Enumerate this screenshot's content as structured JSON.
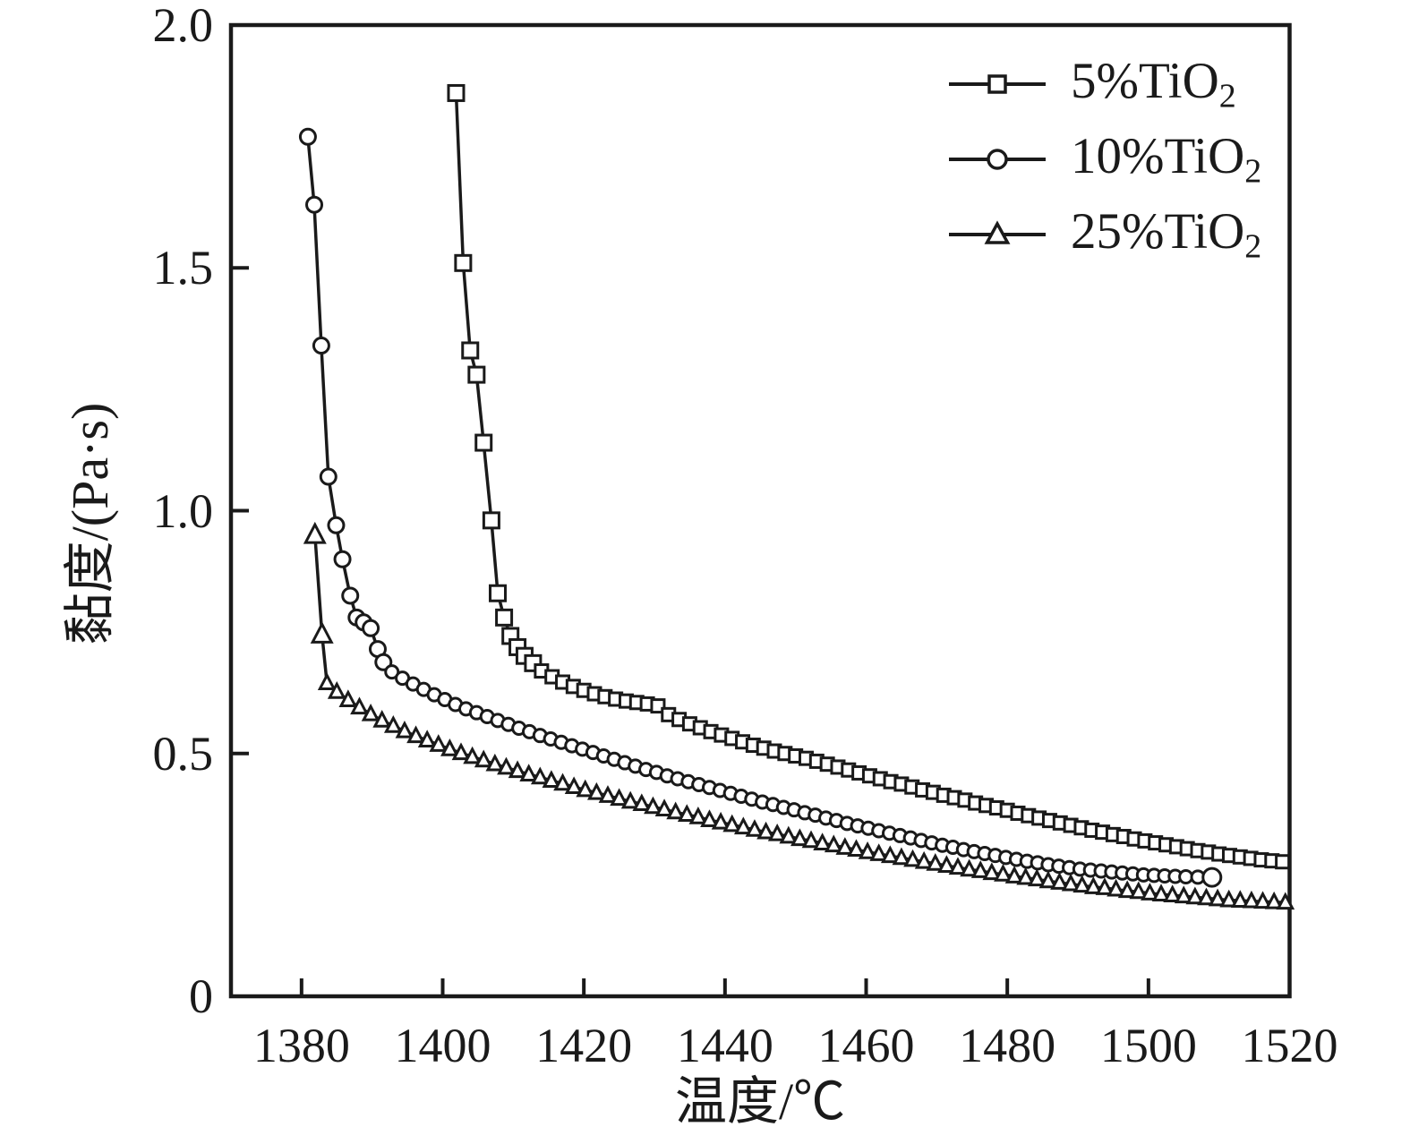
{
  "chart_data": {
    "type": "line",
    "title": "",
    "xlabel": "温度/℃",
    "ylabel": "黏度/(Pa·s)",
    "xlim": [
      1370,
      1520
    ],
    "ylim": [
      0,
      2.0
    ],
    "grid": false,
    "legend_position": "top-right-inside",
    "line_color": "#1a1a1a",
    "x_ticks": [
      1380,
      1400,
      1420,
      1440,
      1460,
      1480,
      1500,
      1520
    ],
    "x_tick_labels": [
      "1380",
      "1400",
      "1420",
      "1440",
      "1460",
      "1480",
      "1500",
      "1520"
    ],
    "y_ticks": [
      0,
      0.5,
      1.0,
      1.5,
      2.0
    ],
    "y_tick_labels": [
      "0",
      "0.5",
      "1.0",
      "1.5",
      "2.0"
    ],
    "series": [
      {
        "name": "5%TiO2",
        "label_base": "5%TiO",
        "label_sub": "2",
        "marker": "square",
        "marker_size": 14,
        "head_count": 12,
        "head_size": 17,
        "points": [
          [
            1401.9,
            1.86
          ],
          [
            1402.9,
            1.51
          ],
          [
            1403.9,
            1.33
          ],
          [
            1404.8,
            1.28
          ],
          [
            1405.8,
            1.14
          ],
          [
            1406.9,
            0.98
          ],
          [
            1407.8,
            0.83
          ],
          [
            1408.7,
            0.78
          ],
          [
            1409.6,
            0.742
          ],
          [
            1410.6,
            0.719
          ],
          [
            1411.6,
            0.701
          ],
          [
            1412.8,
            0.686
          ],
          [
            1414,
            0.67
          ],
          [
            1415.5,
            0.658
          ],
          [
            1417,
            0.647
          ],
          [
            1418.5,
            0.638
          ],
          [
            1420,
            0.63
          ],
          [
            1421.5,
            0.623
          ],
          [
            1423,
            0.617
          ],
          [
            1424.5,
            0.612
          ],
          [
            1426,
            0.608
          ],
          [
            1427.5,
            0.605
          ],
          [
            1429,
            0.602
          ],
          [
            1430.5,
            0.598
          ],
          [
            1432,
            0.58
          ],
          [
            1433.5,
            0.57
          ],
          [
            1435,
            0.561
          ],
          [
            1436.5,
            0.553
          ],
          [
            1438,
            0.545
          ],
          [
            1439.5,
            0.538
          ],
          [
            1441,
            0.531
          ],
          [
            1442.5,
            0.524
          ],
          [
            1444,
            0.517
          ],
          [
            1445.5,
            0.511
          ],
          [
            1447,
            0.505
          ],
          [
            1448.5,
            0.5
          ],
          [
            1450,
            0.495
          ],
          [
            1451.5,
            0.49
          ],
          [
            1453,
            0.484
          ],
          [
            1454.5,
            0.478
          ],
          [
            1456,
            0.472
          ],
          [
            1457.5,
            0.466
          ],
          [
            1459,
            0.46
          ],
          [
            1460.5,
            0.454
          ],
          [
            1462,
            0.448
          ],
          [
            1463.5,
            0.442
          ],
          [
            1465,
            0.437
          ],
          [
            1466.5,
            0.431
          ],
          [
            1468,
            0.425
          ],
          [
            1469.5,
            0.42
          ],
          [
            1471,
            0.414
          ],
          [
            1472.5,
            0.409
          ],
          [
            1474,
            0.404
          ],
          [
            1475.5,
            0.398
          ],
          [
            1477,
            0.393
          ],
          [
            1478.5,
            0.388
          ],
          [
            1480,
            0.383
          ],
          [
            1481.5,
            0.377
          ],
          [
            1483,
            0.372
          ],
          [
            1484.5,
            0.367
          ],
          [
            1486,
            0.362
          ],
          [
            1487.5,
            0.357
          ],
          [
            1489,
            0.352
          ],
          [
            1490.5,
            0.347
          ],
          [
            1492,
            0.342
          ],
          [
            1493.5,
            0.338
          ],
          [
            1495,
            0.333
          ],
          [
            1496.5,
            0.329
          ],
          [
            1498,
            0.324
          ],
          [
            1499.5,
            0.32
          ],
          [
            1501,
            0.316
          ],
          [
            1502.5,
            0.312
          ],
          [
            1504,
            0.308
          ],
          [
            1505.5,
            0.304
          ],
          [
            1507,
            0.3
          ],
          [
            1508.5,
            0.297
          ],
          [
            1510,
            0.293
          ],
          [
            1511.5,
            0.29
          ],
          [
            1513,
            0.287
          ],
          [
            1514.5,
            0.284
          ],
          [
            1516,
            0.281
          ],
          [
            1517.5,
            0.279
          ],
          [
            1519,
            0.277
          ]
        ]
      },
      {
        "name": "10%TiO2",
        "label_base": "10%TiO",
        "label_sub": "2",
        "marker": "circle",
        "marker_size": 14,
        "head_count": 12,
        "head_size": 17,
        "last_size": 20,
        "points": [
          [
            1380.9,
            1.77
          ],
          [
            1381.8,
            1.63
          ],
          [
            1382.8,
            1.34
          ],
          [
            1383.8,
            1.07
          ],
          [
            1384.9,
            0.97
          ],
          [
            1385.8,
            0.9
          ],
          [
            1386.9,
            0.825
          ],
          [
            1387.8,
            0.78
          ],
          [
            1388.8,
            0.77
          ],
          [
            1389.8,
            0.758
          ],
          [
            1390.8,
            0.715
          ],
          [
            1391.6,
            0.688
          ],
          [
            1392.8,
            0.668
          ],
          [
            1394.3,
            0.655
          ],
          [
            1395.8,
            0.643
          ],
          [
            1397.3,
            0.632
          ],
          [
            1398.8,
            0.621
          ],
          [
            1400.3,
            0.611
          ],
          [
            1401.8,
            0.601
          ],
          [
            1403.3,
            0.592
          ],
          [
            1404.8,
            0.584
          ],
          [
            1406.3,
            0.576
          ],
          [
            1407.8,
            0.568
          ],
          [
            1409.3,
            0.56
          ],
          [
            1410.8,
            0.552
          ],
          [
            1412.3,
            0.545
          ],
          [
            1413.8,
            0.537
          ],
          [
            1415.3,
            0.53
          ],
          [
            1416.8,
            0.523
          ],
          [
            1418.3,
            0.516
          ],
          [
            1419.8,
            0.509
          ],
          [
            1421.3,
            0.502
          ],
          [
            1422.8,
            0.495
          ],
          [
            1424.3,
            0.488
          ],
          [
            1425.8,
            0.481
          ],
          [
            1427.3,
            0.474
          ],
          [
            1428.8,
            0.467
          ],
          [
            1430.3,
            0.461
          ],
          [
            1431.8,
            0.454
          ],
          [
            1433.3,
            0.448
          ],
          [
            1434.8,
            0.442
          ],
          [
            1436.3,
            0.436
          ],
          [
            1437.8,
            0.43
          ],
          [
            1439.3,
            0.424
          ],
          [
            1440.8,
            0.418
          ],
          [
            1442.3,
            0.412
          ],
          [
            1443.8,
            0.406
          ],
          [
            1445.3,
            0.4
          ],
          [
            1446.8,
            0.395
          ],
          [
            1448.3,
            0.389
          ],
          [
            1449.8,
            0.384
          ],
          [
            1451.3,
            0.378
          ],
          [
            1452.8,
            0.373
          ],
          [
            1454.3,
            0.367
          ],
          [
            1455.8,
            0.362
          ],
          [
            1457.3,
            0.356
          ],
          [
            1458.8,
            0.351
          ],
          [
            1460.3,
            0.346
          ],
          [
            1461.8,
            0.341
          ],
          [
            1463.3,
            0.336
          ],
          [
            1464.8,
            0.331
          ],
          [
            1466.3,
            0.326
          ],
          [
            1467.8,
            0.321
          ],
          [
            1469.3,
            0.316
          ],
          [
            1470.8,
            0.311
          ],
          [
            1472.3,
            0.307
          ],
          [
            1473.8,
            0.302
          ],
          [
            1475.3,
            0.298
          ],
          [
            1476.8,
            0.294
          ],
          [
            1478.3,
            0.29
          ],
          [
            1479.8,
            0.286
          ],
          [
            1481.3,
            0.282
          ],
          [
            1482.8,
            0.278
          ],
          [
            1484.3,
            0.275
          ],
          [
            1485.8,
            0.271
          ],
          [
            1487.3,
            0.268
          ],
          [
            1488.8,
            0.265
          ],
          [
            1490.3,
            0.262
          ],
          [
            1491.8,
            0.26
          ],
          [
            1493.3,
            0.258
          ],
          [
            1494.8,
            0.256
          ],
          [
            1496.3,
            0.254
          ],
          [
            1497.8,
            0.252
          ],
          [
            1499.3,
            0.25
          ],
          [
            1500.8,
            0.249
          ],
          [
            1502.3,
            0.248
          ],
          [
            1503.8,
            0.247
          ],
          [
            1505.3,
            0.246
          ],
          [
            1507,
            0.2455
          ],
          [
            1509,
            0.245
          ]
        ]
      },
      {
        "name": "25%TiO2",
        "label_base": "25%TiO",
        "label_sub": "2",
        "marker": "triangle",
        "marker_size": 15,
        "head_count": 2,
        "head_size": 20,
        "points": [
          [
            1381.9,
            0.95
          ],
          [
            1382.9,
            0.745
          ],
          [
            1383.6,
            0.645
          ],
          [
            1385,
            0.627
          ],
          [
            1386.6,
            0.61
          ],
          [
            1388.2,
            0.595
          ],
          [
            1389.8,
            0.581
          ],
          [
            1391.4,
            0.568
          ],
          [
            1393,
            0.557
          ],
          [
            1394.6,
            0.546
          ],
          [
            1396.2,
            0.536
          ],
          [
            1397.8,
            0.527
          ],
          [
            1399.4,
            0.518
          ],
          [
            1401,
            0.509
          ],
          [
            1402.6,
            0.501
          ],
          [
            1404.2,
            0.493
          ],
          [
            1405.8,
            0.486
          ],
          [
            1407.4,
            0.478
          ],
          [
            1409,
            0.471
          ],
          [
            1410.6,
            0.464
          ],
          [
            1412.2,
            0.457
          ],
          [
            1413.8,
            0.451
          ],
          [
            1415.4,
            0.444
          ],
          [
            1417,
            0.438
          ],
          [
            1418.6,
            0.431
          ],
          [
            1420.2,
            0.425
          ],
          [
            1421.8,
            0.419
          ],
          [
            1423.4,
            0.413
          ],
          [
            1425,
            0.407
          ],
          [
            1426.6,
            0.401
          ],
          [
            1428.2,
            0.396
          ],
          [
            1429.8,
            0.39
          ],
          [
            1431.4,
            0.385
          ],
          [
            1433,
            0.379
          ],
          [
            1434.6,
            0.374
          ],
          [
            1436.2,
            0.369
          ],
          [
            1437.8,
            0.363
          ],
          [
            1439.4,
            0.358
          ],
          [
            1441,
            0.353
          ],
          [
            1442.6,
            0.348
          ],
          [
            1444.2,
            0.343
          ],
          [
            1445.8,
            0.338
          ],
          [
            1447.4,
            0.334
          ],
          [
            1449,
            0.329
          ],
          [
            1450.6,
            0.324
          ],
          [
            1452.2,
            0.32
          ],
          [
            1453.8,
            0.315
          ],
          [
            1455.4,
            0.311
          ],
          [
            1457,
            0.306
          ],
          [
            1458.6,
            0.302
          ],
          [
            1460.2,
            0.297
          ],
          [
            1461.8,
            0.293
          ],
          [
            1463.4,
            0.289
          ],
          [
            1465,
            0.285
          ],
          [
            1466.6,
            0.281
          ],
          [
            1468.2,
            0.277
          ],
          [
            1469.8,
            0.273
          ],
          [
            1471.4,
            0.269
          ],
          [
            1473,
            0.265
          ],
          [
            1474.6,
            0.261
          ],
          [
            1476.2,
            0.258
          ],
          [
            1477.8,
            0.254
          ],
          [
            1479.4,
            0.251
          ],
          [
            1481,
            0.247
          ],
          [
            1482.6,
            0.244
          ],
          [
            1484.2,
            0.241
          ],
          [
            1485.8,
            0.237
          ],
          [
            1487.4,
            0.234
          ],
          [
            1489,
            0.231
          ],
          [
            1490.6,
            0.228
          ],
          [
            1492.2,
            0.225
          ],
          [
            1493.8,
            0.223
          ],
          [
            1495.4,
            0.22
          ],
          [
            1497,
            0.217
          ],
          [
            1498.6,
            0.215
          ],
          [
            1500.2,
            0.212
          ],
          [
            1501.8,
            0.21
          ],
          [
            1503.4,
            0.208
          ],
          [
            1505,
            0.206
          ],
          [
            1506.6,
            0.204
          ],
          [
            1508.2,
            0.202
          ],
          [
            1509.8,
            0.2
          ],
          [
            1511.4,
            0.198
          ],
          [
            1513,
            0.197
          ],
          [
            1514.6,
            0.196
          ],
          [
            1516.2,
            0.195
          ],
          [
            1517.8,
            0.194
          ],
          [
            1519.4,
            0.193
          ]
        ]
      }
    ]
  }
}
